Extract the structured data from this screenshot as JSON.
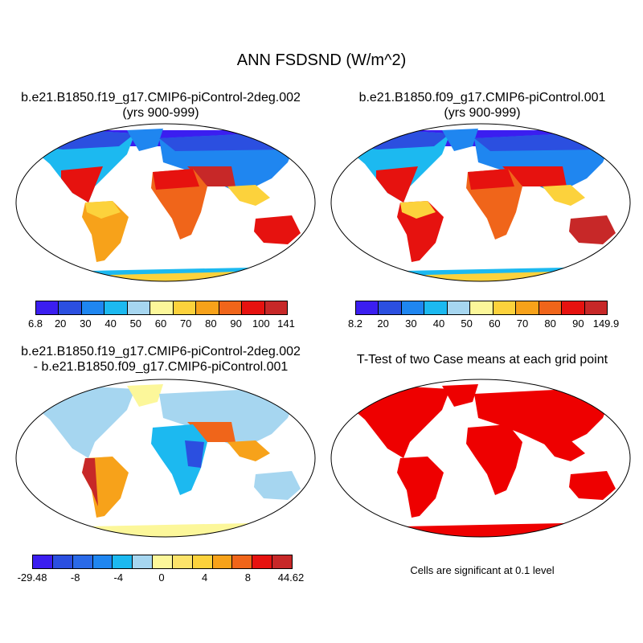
{
  "title": "ANN FSDSND (W/m^2)",
  "panels": {
    "p1": {
      "title_line1": "b.e21.B1850.f19_g17.CMIP6-piControl-2deg.002",
      "title_line2": "(yrs 900-999)",
      "colorbar": {
        "colors": [
          "#3b1ef0",
          "#2b4fe0",
          "#1f86f0",
          "#1cb9f0",
          "#a6d6f0",
          "#fcf79a",
          "#fcd23c",
          "#f7a21a",
          "#f0651a",
          "#e6120f",
          "#c72828"
        ],
        "labels": [
          "6.8",
          "20",
          "30",
          "40",
          "50",
          "60",
          "70",
          "80",
          "90",
          "100",
          "141"
        ]
      }
    },
    "p2": {
      "title_line1": "b.e21.B1850.f09_g17.CMIP6-piControl.001",
      "title_line2": "(yrs 900-999)",
      "colorbar": {
        "colors": [
          "#3b1ef0",
          "#2b4fe0",
          "#1f86f0",
          "#1cb9f0",
          "#a6d6f0",
          "#fcf79a",
          "#fcd23c",
          "#f7a21a",
          "#f0651a",
          "#e6120f",
          "#c72828"
        ],
        "labels": [
          "8.2",
          "20",
          "30",
          "40",
          "50",
          "60",
          "70",
          "80",
          "90",
          "149.9"
        ]
      }
    },
    "p3": {
      "title_line1": "b.e21.B1850.f19_g17.CMIP6-piControl-2deg.002",
      "title_line2": "- b.e21.B1850.f09_g17.CMIP6-piControl.001",
      "colorbar": {
        "colors": [
          "#3b1ef0",
          "#2b4fe0",
          "#2a6ae8",
          "#1f86f0",
          "#1cb9f0",
          "#a6d6f0",
          "#fcf79a",
          "#fce36a",
          "#fcd23c",
          "#f7a21a",
          "#f0651a",
          "#e6120f",
          "#c72828"
        ],
        "labels": [
          "-29.48",
          "-8",
          "-4",
          "0",
          "4",
          "8",
          "44.62"
        ]
      }
    },
    "p4": {
      "title": "T-Test of two Case means at each grid point",
      "note": "Cells are significant at 0.1 level",
      "fill": "#ee0000"
    }
  }
}
